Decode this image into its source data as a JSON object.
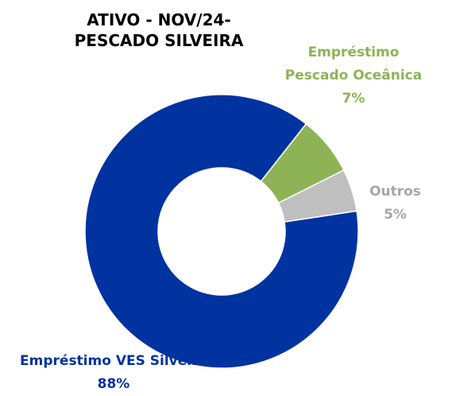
{
  "chart_data": {
    "type": "donut",
    "title": "ATIVO - NOV/24- PESCADO SILVEIRA",
    "categories": [
      "Empréstimo VES Silveira",
      "Empréstimo Pescado Oceânica",
      "Outros"
    ],
    "values": [
      88,
      7,
      5
    ],
    "value_labels": [
      "88%",
      "7%",
      "5%"
    ],
    "colors": [
      "#0033a0",
      "#8db356",
      "#bfbfbf"
    ]
  }
}
